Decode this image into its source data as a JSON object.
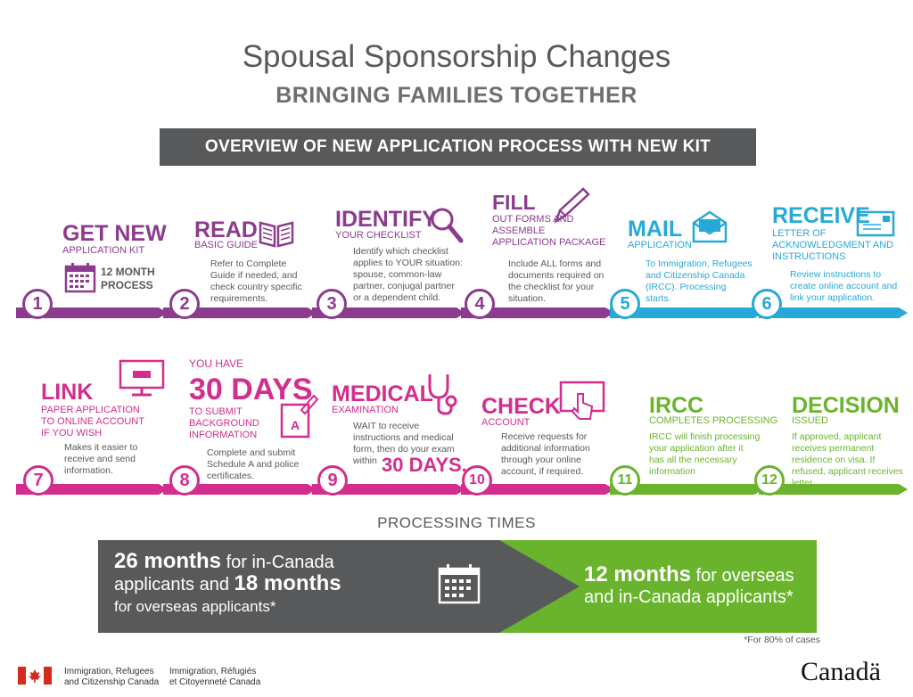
{
  "header": {
    "title": "Spousal Sponsorship Changes",
    "subtitle": "BRINGING FAMILIES TOGETHER",
    "banner": "OVERVIEW OF NEW APPLICATION PROCESS WITH NEW KIT"
  },
  "steps": [
    {
      "num": "1",
      "title": "GET NEW",
      "sub": "APPLICATION KIT",
      "desc": "12 MONTH\nPROCESS",
      "color": "#8c3b8e"
    },
    {
      "num": "2",
      "title": "READ",
      "sub": "BASIC GUIDE",
      "desc": "Refer to Complete Guide if needed, and check country specific requirements.",
      "color": "#8c3b8e"
    },
    {
      "num": "3",
      "title": "IDENTIFY",
      "sub": "YOUR CHECKLIST",
      "desc": "Identify which checklist applies to YOUR situation: spouse, common-law partner, conjugal partner or a dependent child.",
      "color": "#8c3b8e"
    },
    {
      "num": "4",
      "title": "FILL",
      "sub": "OUT FORMS AND ASSEMBLE APPLICATION PACKAGE",
      "desc": "Include ALL forms and documents required on the checklist for your situation.",
      "color": "#8c3b8e"
    },
    {
      "num": "5",
      "title": "MAIL",
      "sub": "APPLICATION",
      "desc": "To Immigration, Refugees and Citizenship Canada (IRCC). Processing starts.",
      "color": "#27a9d7"
    },
    {
      "num": "6",
      "title": "RECEIVE",
      "sub": "LETTER OF ACKNOWLEDGMENT AND INSTRUCTIONS",
      "desc": "Review instructions to create online account and link your application.",
      "color": "#27a9d7"
    },
    {
      "num": "7",
      "title": "LINK",
      "sub": "PAPER APPLICATION TO ONLINE ACCOUNT IF YOU WISH",
      "desc": "Makes it easier to receive and send information.",
      "color": "#d32d8d"
    },
    {
      "num": "8",
      "pre": "YOU HAVE",
      "title": "30 DAYS",
      "sub": "TO SUBMIT BACKGROUND INFORMATION",
      "desc": "Complete and submit Schedule A and police certificates.",
      "color": "#d32d8d"
    },
    {
      "num": "9",
      "title": "MEDICAL",
      "sub": "EXAMINATION",
      "desc": "WAIT to receive instructions and medical form, then do your exam within",
      "desc_big": "30 DAYS.",
      "color": "#d32d8d"
    },
    {
      "num": "10",
      "title": "CHECK",
      "sub": "ACCOUNT",
      "desc": "Receive requests for additional information through your online account, if required.",
      "color": "#d32d8d"
    },
    {
      "num": "11",
      "title": "IRCC",
      "sub": "COMPLETES PROCESSING",
      "desc": "IRCC will finish processing your application after it has all the necessary information",
      "color": "#6ab42d"
    },
    {
      "num": "12",
      "title": "DECISION",
      "sub": "ISSUED",
      "desc": "If approved, applicant receives permanent residence on visa. If refused, applicant receives letter.",
      "color": "#6ab42d"
    }
  ],
  "processing": {
    "title": "PROCESSING TIMES",
    "left_big1": "26 months",
    "left_mid": " for in-Canada applicants and ",
    "left_big2": "18 months",
    "left_end": "for overseas applicants*",
    "right_big": "12 months",
    "right_mid": " for overseas and in-Canada applicants*",
    "footnote": "*For 80% of cases"
  },
  "footer": {
    "dept_en_1": "Immigration, Refugees",
    "dept_en_2": "and Citizenship Canada",
    "dept_fr_1": "Immigration, Réfugiés",
    "dept_fr_2": "et Citoyenneté Canada",
    "wordmark": "Canadä"
  },
  "icons": [
    "calendar-icon",
    "book-icon",
    "magnifier-icon",
    "pencil-icon",
    "envelope-icon",
    "letter-icon",
    "monitor-icon",
    "document-icon",
    "stethoscope-icon",
    "touchscreen-icon",
    "canada-flag-icon"
  ]
}
